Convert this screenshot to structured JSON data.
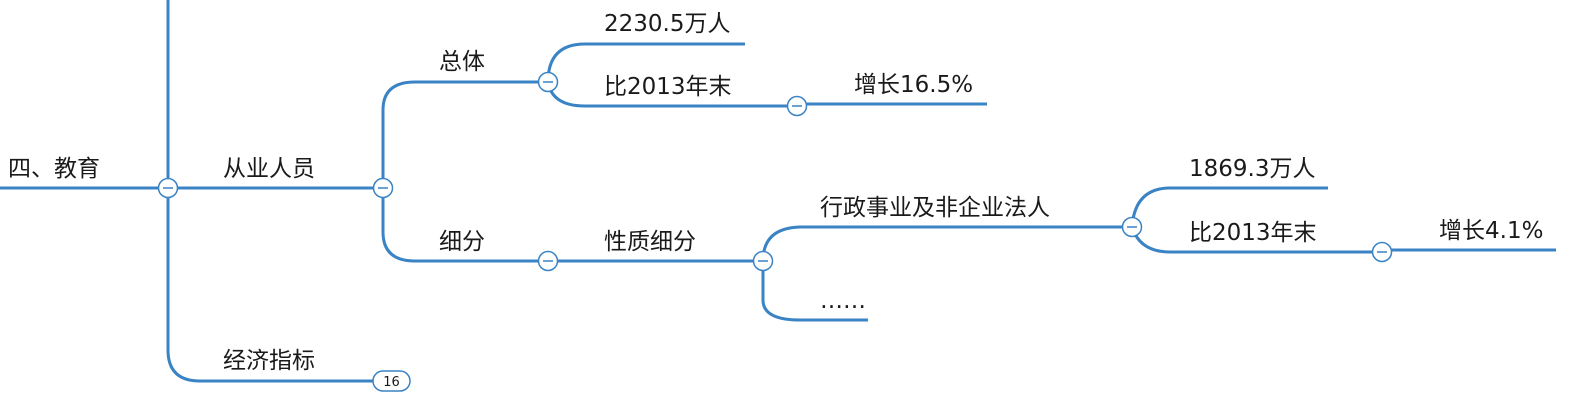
{
  "nodes": {
    "root": "四、教育",
    "employees": "从业人员",
    "overall": "总体",
    "overall_value": "2230.5万人",
    "overall_vs2013": "比2013年末",
    "overall_growth": "增长16.5%",
    "breakdown": "细分",
    "by_nature": "性质细分",
    "admin_nonprofit": "行政事业及非企业法人",
    "admin_value": "1869.3万人",
    "admin_vs2013": "比2013年末",
    "admin_growth": "增长4.1%",
    "ellipsis": "……",
    "econ_indicators": "经济指标"
  },
  "collapsed_badge": "16"
}
